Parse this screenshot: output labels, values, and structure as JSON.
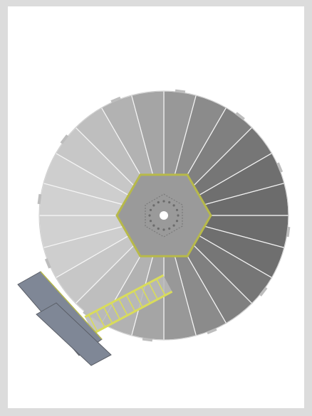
{
  "figure": {
    "subject": "",
    "colors": {
      "outer_frame": "#dcdcdc",
      "canvas": "#ffffff",
      "hub_fill": "#9a9a9a",
      "hub_outline": "#b7b94a",
      "segment_light": "#e6e6e6",
      "segment_dark": "#5e5e5e",
      "segment_divider": "#f5f5f5",
      "walkway_rail": "#d9dc5b",
      "walkway_fill": "#b9b9b9",
      "platform_fill": "#7f8796",
      "platform_outline": "#5b5f67",
      "center_hole": "#ffffff",
      "center_bolts": "#6b6b6b"
    },
    "segments_count": 24
  }
}
